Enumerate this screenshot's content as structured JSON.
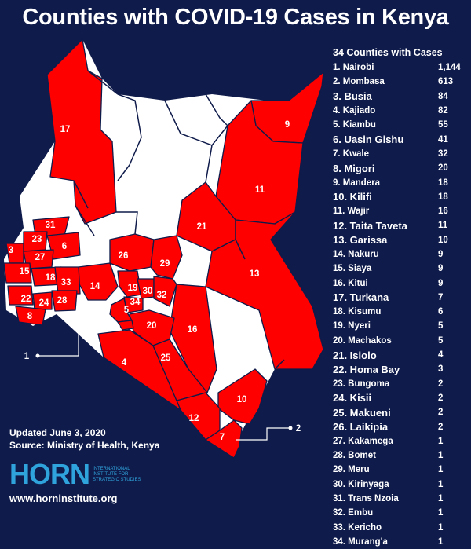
{
  "title": "Counties with COVID-19 Cases in Kenya",
  "colors": {
    "background": "#0f1b4a",
    "affected": "#ff0000",
    "unaffected": "#ffffff",
    "logo": "#2fa3dc"
  },
  "legend": {
    "title": "34 Counties with Cases",
    "items": [
      {
        "rank": "1.",
        "name": "Nairobi",
        "cases": "1,144"
      },
      {
        "rank": "2.",
        "name": "Mombasa",
        "cases": "613"
      },
      {
        "rank": "3.",
        "name": "Busia",
        "cases": "84"
      },
      {
        "rank": "4.",
        "name": "Kajiado",
        "cases": "82"
      },
      {
        "rank": "5.",
        "name": "Kiambu",
        "cases": "55"
      },
      {
        "rank": "6.",
        "name": "Uasin Gishu",
        "cases": "41"
      },
      {
        "rank": "7.",
        "name": "Kwale",
        "cases": "32"
      },
      {
        "rank": "8.",
        "name": "Migori",
        "cases": "20"
      },
      {
        "rank": "9.",
        "name": "Mandera",
        "cases": "18"
      },
      {
        "rank": "10.",
        "name": "Kilifi",
        "cases": "18"
      },
      {
        "rank": "11.",
        "name": "Wajir",
        "cases": "16"
      },
      {
        "rank": "12.",
        "name": "Taita Taveta",
        "cases": "11"
      },
      {
        "rank": "13.",
        "name": "Garissa",
        "cases": "10"
      },
      {
        "rank": "14.",
        "name": "Nakuru",
        "cases": "9"
      },
      {
        "rank": "15.",
        "name": "Siaya",
        "cases": "9"
      },
      {
        "rank": "16.",
        "name": "Kitui",
        "cases": "9"
      },
      {
        "rank": "17.",
        "name": "Turkana",
        "cases": "7"
      },
      {
        "rank": "18.",
        "name": "Kisumu",
        "cases": "6"
      },
      {
        "rank": "19.",
        "name": "Nyeri",
        "cases": "5"
      },
      {
        "rank": "20.",
        "name": "Machakos",
        "cases": "5"
      },
      {
        "rank": "21.",
        "name": "Isiolo",
        "cases": "4"
      },
      {
        "rank": "22.",
        "name": "Homa Bay",
        "cases": "3"
      },
      {
        "rank": "23.",
        "name": "Bungoma",
        "cases": "2"
      },
      {
        "rank": "24.",
        "name": "Kisii",
        "cases": "2"
      },
      {
        "rank": "25.",
        "name": "Makueni",
        "cases": "2"
      },
      {
        "rank": "26.",
        "name": "Laikipia",
        "cases": "2"
      },
      {
        "rank": "27.",
        "name": "Kakamega",
        "cases": "1"
      },
      {
        "rank": "28.",
        "name": "Bomet",
        "cases": "1"
      },
      {
        "rank": "29.",
        "name": "Meru",
        "cases": "1"
      },
      {
        "rank": "30.",
        "name": "Kirinyaga",
        "cases": "1"
      },
      {
        "rank": "31.",
        "name": "Trans Nzoia",
        "cases": "1"
      },
      {
        "rank": "32.",
        "name": "Embu",
        "cases": "1"
      },
      {
        "rank": "33.",
        "name": "Kericho",
        "cases": "1"
      },
      {
        "rank": "34.",
        "name": "Murang'a",
        "cases": "1"
      }
    ]
  },
  "map_labels": [
    "1",
    "2",
    "3",
    "4",
    "5",
    "6",
    "7",
    "8",
    "9",
    "10",
    "11",
    "12",
    "13",
    "14",
    "15",
    "16",
    "17",
    "18",
    "19",
    "20",
    "21",
    "22",
    "23",
    "24",
    "25",
    "26",
    "27",
    "28",
    "29",
    "30",
    "31",
    "32",
    "33",
    "34"
  ],
  "updated": "Updated June 3, 2020",
  "source": "Source: Ministry of Health, Kenya",
  "logo": {
    "word": "HORN",
    "subtitle": "International Institute for Strategic Studies"
  },
  "website": "www.horninstitute.org"
}
